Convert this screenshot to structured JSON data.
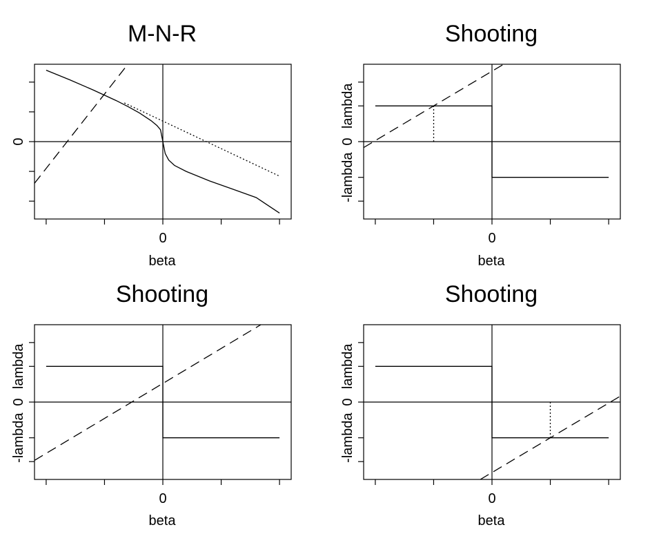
{
  "chart_data": [
    {
      "type": "line",
      "title": "M-N-R",
      "xlabel": "beta",
      "ylabel": "",
      "xlim": [
        -1.1,
        1.1
      ],
      "ylim": [
        -1.3,
        1.3
      ],
      "x_tick_values": [
        -1,
        -0.5,
        0,
        0.5,
        1
      ],
      "x_tick_labels": [
        "",
        "",
        "0",
        "",
        ""
      ],
      "y_tick_values": [
        -1,
        -0.5,
        0,
        0.5,
        1
      ],
      "y_tick_labels": [
        "",
        "",
        "0",
        "",
        ""
      ],
      "series": [
        {
          "style": "solid",
          "points": [
            [
              -1,
              1.2
            ],
            [
              -0.8,
              1.04
            ],
            [
              -0.6,
              0.87
            ],
            [
              -0.4,
              0.69
            ],
            [
              -0.3,
              0.59
            ],
            [
              -0.2,
              0.48
            ],
            [
              -0.1,
              0.35
            ],
            [
              -0.05,
              0.27
            ],
            [
              -0.02,
              0.2
            ],
            [
              0,
              0
            ],
            [
              0.02,
              -0.2
            ],
            [
              0.05,
              -0.31
            ],
            [
              0.1,
              -0.4
            ],
            [
              0.2,
              -0.5
            ],
            [
              0.3,
              -0.58
            ],
            [
              0.4,
              -0.66
            ],
            [
              0.6,
              -0.8
            ],
            [
              0.8,
              -0.94
            ],
            [
              1,
              -1.2
            ]
          ]
        },
        {
          "style": "dashed",
          "points": [
            [
              -1.1,
              -0.7
            ],
            [
              -0.3,
              1.3
            ]
          ]
        },
        {
          "style": "dotted",
          "points": [
            [
              -0.33,
              0.65
            ],
            [
              1,
              -0.58
            ]
          ]
        }
      ]
    },
    {
      "type": "line",
      "title": "Shooting",
      "xlabel": "beta",
      "ylabel": "-lambda 0  lambda",
      "xlim": [
        -1.1,
        1.1
      ],
      "ylim": [
        -1.3,
        1.3
      ],
      "x_tick_values": [
        -1,
        -0.5,
        0,
        0.5,
        1
      ],
      "x_tick_labels": [
        "",
        "",
        "0",
        "",
        ""
      ],
      "y_tick_values": [
        -1,
        -0.6,
        0,
        0.6,
        1
      ],
      "y_tick_labels": [
        "",
        "-lambda",
        "0",
        "lambda",
        ""
      ],
      "series": [
        {
          "style": "solid",
          "points": [
            [
              -1,
              0.6
            ],
            [
              0,
              0.6
            ],
            [
              0,
              -0.6
            ],
            [
              1,
              -0.6
            ]
          ]
        },
        {
          "style": "dashed",
          "points": [
            [
              -1.1,
              -0.1
            ],
            [
              0.1,
              1.3
            ]
          ]
        },
        {
          "style": "dotted",
          "points": [
            [
              -0.5,
              0
            ],
            [
              -0.5,
              0.6
            ]
          ]
        }
      ]
    },
    {
      "type": "line",
      "title": "Shooting",
      "xlabel": "beta",
      "ylabel": "-lambda 0  lambda",
      "xlim": [
        -1.1,
        1.1
      ],
      "ylim": [
        -1.3,
        1.3
      ],
      "x_tick_values": [
        -1,
        -0.5,
        0,
        0.5,
        1
      ],
      "x_tick_labels": [
        "",
        "",
        "0",
        "",
        ""
      ],
      "y_tick_values": [
        -1,
        -0.6,
        0,
        0.6,
        1
      ],
      "y_tick_labels": [
        "",
        "-lambda",
        "0",
        "lambda",
        ""
      ],
      "series": [
        {
          "style": "solid",
          "points": [
            [
              -1,
              0.6
            ],
            [
              0,
              0.6
            ],
            [
              0,
              -0.6
            ],
            [
              1,
              -0.6
            ]
          ]
        },
        {
          "style": "dashed",
          "points": [
            [
              -1.1,
              -0.98
            ],
            [
              0.84,
              1.3
            ]
          ]
        }
      ]
    },
    {
      "type": "line",
      "title": "Shooting",
      "xlabel": "beta",
      "ylabel": "-lambda 0  lambda",
      "xlim": [
        -1.1,
        1.1
      ],
      "ylim": [
        -1.3,
        1.3
      ],
      "x_tick_values": [
        -1,
        -0.5,
        0,
        0.5,
        1
      ],
      "x_tick_labels": [
        "",
        "",
        "0",
        "",
        ""
      ],
      "y_tick_values": [
        -1,
        -0.6,
        0,
        0.6,
        1
      ],
      "y_tick_labels": [
        "",
        "-lambda",
        "0",
        "lambda",
        ""
      ],
      "series": [
        {
          "style": "solid",
          "points": [
            [
              -1,
              0.6
            ],
            [
              0,
              0.6
            ],
            [
              0,
              -0.6
            ],
            [
              1,
              -0.6
            ]
          ]
        },
        {
          "style": "dashed",
          "points": [
            [
              -0.1,
              -1.3
            ],
            [
              1.1,
              0.1
            ]
          ]
        },
        {
          "style": "dotted",
          "points": [
            [
              0.5,
              0
            ],
            [
              0.5,
              -0.6
            ]
          ]
        }
      ]
    }
  ]
}
